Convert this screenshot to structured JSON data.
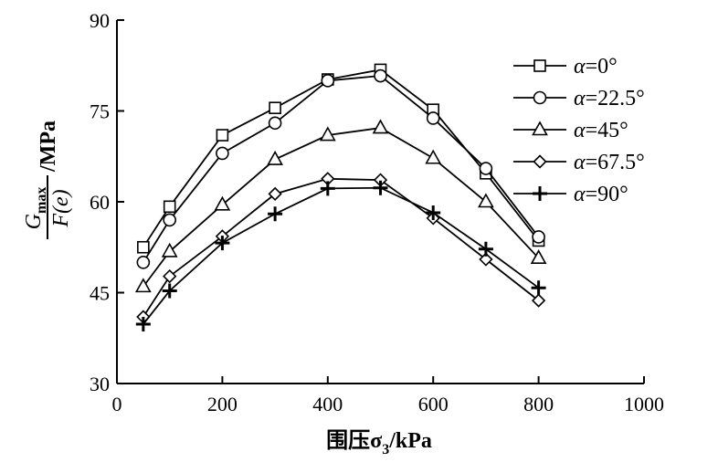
{
  "chart_data": {
    "type": "line",
    "title": "",
    "xlabel": {
      "main": "围压σ",
      "sub": "3",
      "unit": "/kPa"
    },
    "ylabel": {
      "numerator": "G",
      "numerator_sub": "max",
      "denominator": "F(e)",
      "unit": "/MPa"
    },
    "xlim": [
      0,
      1000
    ],
    "ylim": [
      30,
      90
    ],
    "xticks": [
      0,
      200,
      400,
      600,
      800,
      1000
    ],
    "yticks": [
      30,
      45,
      60,
      75,
      90
    ],
    "grid": false,
    "legend_position": "top-right",
    "series": [
      {
        "name": "α=0°",
        "name_symbol": "α",
        "name_value": "=0°",
        "marker": "square",
        "points": [
          [
            50,
            52.5
          ],
          [
            100,
            59.2
          ],
          [
            200,
            71.0
          ],
          [
            300,
            75.5
          ],
          [
            400,
            80.2
          ],
          [
            500,
            81.8
          ],
          [
            600,
            75.2
          ],
          [
            700,
            64.7
          ],
          [
            800,
            53.6
          ]
        ]
      },
      {
        "name": "α=22.5°",
        "name_symbol": "α",
        "name_value": "=22.5°",
        "marker": "circle",
        "points": [
          [
            50,
            50.0
          ],
          [
            100,
            57.0
          ],
          [
            200,
            68.0
          ],
          [
            300,
            73.0
          ],
          [
            400,
            80.0
          ],
          [
            500,
            80.8
          ],
          [
            600,
            73.8
          ],
          [
            700,
            65.5
          ],
          [
            800,
            54.2
          ]
        ]
      },
      {
        "name": "α=45°",
        "name_symbol": "α",
        "name_value": "=45°",
        "marker": "triangle",
        "points": [
          [
            50,
            46.0
          ],
          [
            100,
            51.8
          ],
          [
            200,
            59.5
          ],
          [
            300,
            67.0
          ],
          [
            400,
            71.0
          ],
          [
            500,
            72.2
          ],
          [
            600,
            67.2
          ],
          [
            700,
            60.0
          ],
          [
            800,
            50.7
          ]
        ]
      },
      {
        "name": "α=67.5°",
        "name_symbol": "α",
        "name_value": "=67.5°",
        "marker": "diamond",
        "points": [
          [
            50,
            41.0
          ],
          [
            100,
            47.7
          ],
          [
            200,
            54.3
          ],
          [
            300,
            61.3
          ],
          [
            400,
            63.8
          ],
          [
            500,
            63.6
          ],
          [
            600,
            57.3
          ],
          [
            700,
            50.5
          ],
          [
            800,
            43.7
          ]
        ]
      },
      {
        "name": "α=90°",
        "name_symbol": "α",
        "name_value": "=90°",
        "marker": "plus",
        "points": [
          [
            50,
            39.8
          ],
          [
            100,
            45.3
          ],
          [
            200,
            53.2
          ],
          [
            300,
            58.0
          ],
          [
            400,
            62.2
          ],
          [
            500,
            62.3
          ],
          [
            600,
            58.2
          ],
          [
            700,
            52.2
          ],
          [
            800,
            45.8
          ]
        ]
      }
    ]
  }
}
